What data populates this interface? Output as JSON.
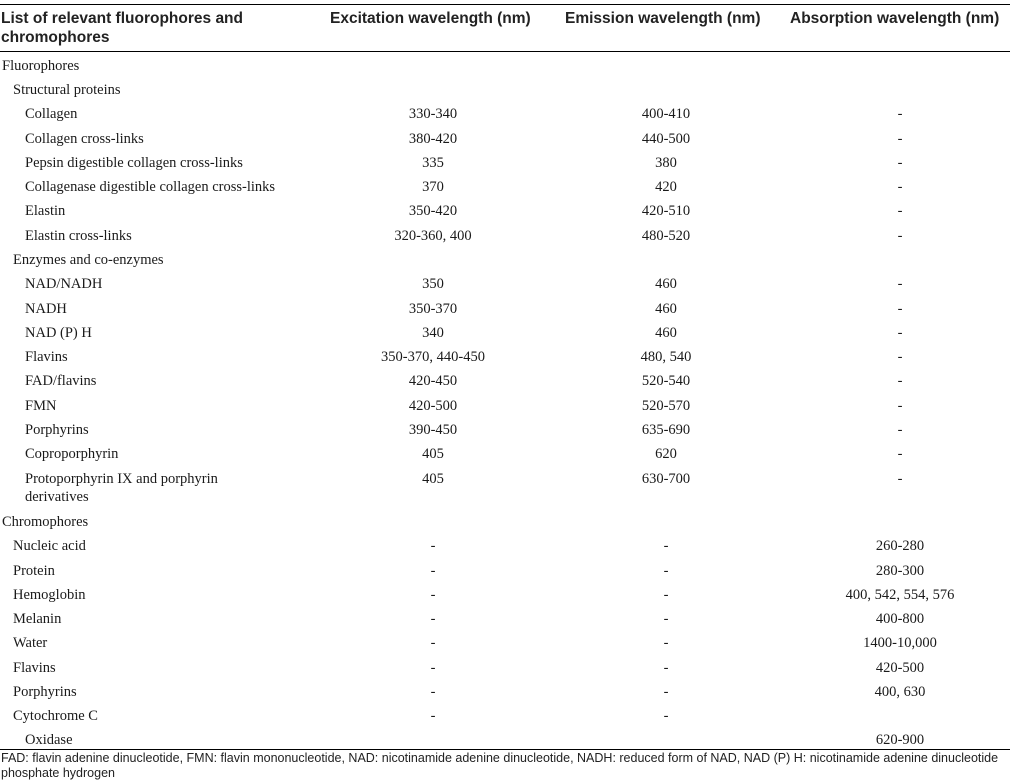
{
  "table": {
    "headers": [
      "List of relevant fluorophores and chromophores",
      "Excitation wavelength (nm)",
      "Emission wavelength (nm)",
      "Absorption wavelength (nm)"
    ],
    "rows": [
      {
        "name": "Fluorophores",
        "level": 0,
        "ex": "",
        "em": "",
        "ab": ""
      },
      {
        "name": "Structural proteins",
        "level": 1,
        "ex": "",
        "em": "",
        "ab": ""
      },
      {
        "name": "Collagen",
        "level": 2,
        "ex": "330-340",
        "em": "400-410",
        "ab": "-"
      },
      {
        "name": "Collagen cross-links",
        "level": 2,
        "ex": "380-420",
        "em": "440-500",
        "ab": "-"
      },
      {
        "name": "Pepsin digestible collagen cross-links",
        "level": 2,
        "ex": "335",
        "em": "380",
        "ab": "-"
      },
      {
        "name": "Collagenase digestible collagen cross-links",
        "level": 2,
        "ex": "370",
        "em": "420",
        "ab": "-"
      },
      {
        "name": "Elastin",
        "level": 2,
        "ex": "350-420",
        "em": "420-510",
        "ab": "-"
      },
      {
        "name": "Elastin cross-links",
        "level": 2,
        "ex": "320-360, 400",
        "em": "480-520",
        "ab": "-"
      },
      {
        "name": "Enzymes and co-enzymes",
        "level": 1,
        "ex": "",
        "em": "",
        "ab": ""
      },
      {
        "name": "NAD/NADH",
        "level": 2,
        "ex": "350",
        "em": "460",
        "ab": "-"
      },
      {
        "name": "NADH",
        "level": 2,
        "ex": "350-370",
        "em": "460",
        "ab": "-"
      },
      {
        "name": "NAD (P) H",
        "level": 2,
        "ex": "340",
        "em": "460",
        "ab": "-"
      },
      {
        "name": "Flavins",
        "level": 2,
        "ex": "350-370, 440-450",
        "em": "480, 540",
        "ab": "-"
      },
      {
        "name": "FAD/flavins",
        "level": 2,
        "ex": "420-450",
        "em": "520-540",
        "ab": "-"
      },
      {
        "name": "FMN",
        "level": 2,
        "ex": "420-500",
        "em": "520-570",
        "ab": "-"
      },
      {
        "name": "Porphyrins",
        "level": 2,
        "ex": "390-450",
        "em": "635-690",
        "ab": "-"
      },
      {
        "name": "Coproporphyrin",
        "level": 2,
        "ex": "405",
        "em": "620",
        "ab": "-"
      },
      {
        "name": "Protoporphyrin IX and porphyrin derivatives",
        "level": 2,
        "ex": "405",
        "em": "630-700",
        "ab": "-"
      },
      {
        "name": "Chromophores",
        "level": 0,
        "ex": "",
        "em": "",
        "ab": ""
      },
      {
        "name": "Nucleic acid",
        "level": 1,
        "ex": "-",
        "em": "-",
        "ab": "260-280"
      },
      {
        "name": "Protein",
        "level": 1,
        "ex": "-",
        "em": "-",
        "ab": "280-300"
      },
      {
        "name": "Hemoglobin",
        "level": 1,
        "ex": "-",
        "em": "-",
        "ab": "400, 542, 554, 576"
      },
      {
        "name": "Melanin",
        "level": 1,
        "ex": "-",
        "em": "-",
        "ab": "400-800"
      },
      {
        "name": "Water",
        "level": 1,
        "ex": "-",
        "em": "-",
        "ab": "1400-10,000"
      },
      {
        "name": "Flavins",
        "level": 1,
        "ex": "-",
        "em": "-",
        "ab": "420-500"
      },
      {
        "name": "Porphyrins",
        "level": 1,
        "ex": "-",
        "em": "-",
        "ab": "400, 630"
      },
      {
        "name": "Cytochrome C",
        "level": 1,
        "ex": "-",
        "em": "-",
        "ab": ""
      },
      {
        "name": "Oxidase",
        "level": 2,
        "ex": "",
        "em": "",
        "ab": "620-900"
      }
    ]
  },
  "footnote": "FAD: flavin adenine dinucleotide, FMN: flavin mononucleotide, NAD: nicotinamide adenine dinucleotide, NADH: reduced form of NAD, NAD (P) H: nicotinamide adenine dinucleotide phosphate hydrogen"
}
